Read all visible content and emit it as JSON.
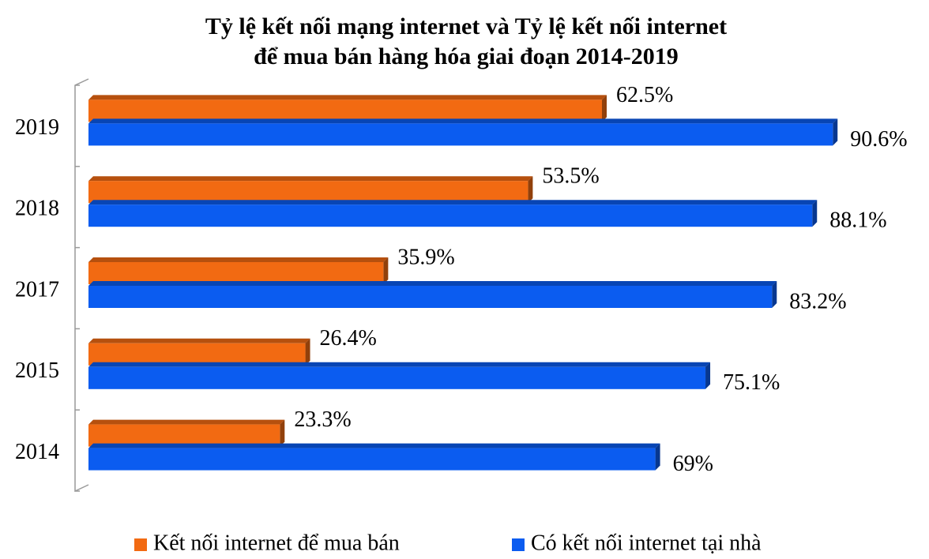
{
  "chart_data": {
    "type": "bar",
    "orientation": "horizontal",
    "title": [
      "Tỷ lệ kết nối mạng internet và Tỷ lệ kết nối internet",
      "để mua bán hàng hóa giai đoạn 2014-2019"
    ],
    "categories": [
      "2014",
      "2015",
      "2017",
      "2018",
      "2019"
    ],
    "series": [
      {
        "name": "Kết nối internet để mua bán",
        "color": "#f26a12",
        "values": [
          23.3,
          26.4,
          35.9,
          53.5,
          62.5
        ],
        "value_labels": [
          "23.3%",
          "26.4%",
          "35.9%",
          "53.5%",
          "62.5%"
        ]
      },
      {
        "name": "Có kết nối internet tại nhà",
        "color": "#0b5cf0",
        "values": [
          69,
          75.1,
          83.2,
          88.1,
          90.6
        ],
        "value_labels": [
          "69%",
          "75.1%",
          "83.2%",
          "88.1%",
          "90.6%"
        ]
      }
    ],
    "legend": "bottom"
  }
}
